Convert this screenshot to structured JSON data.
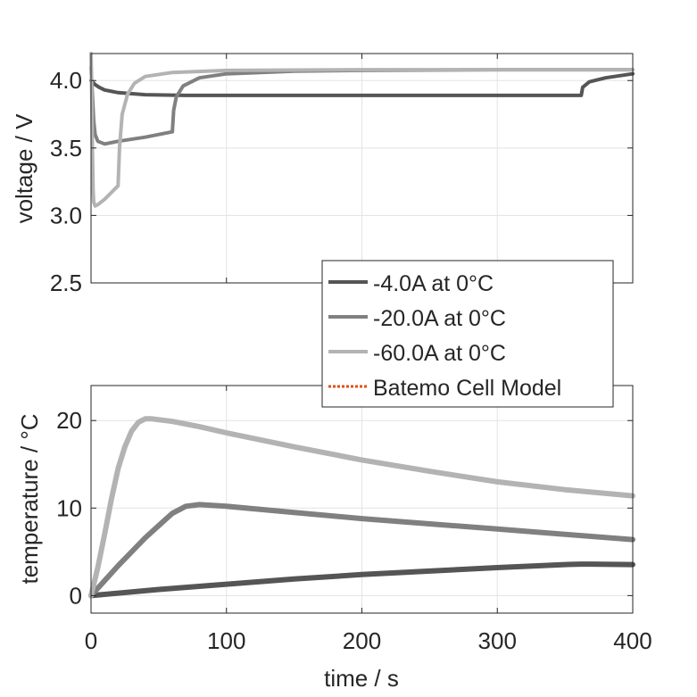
{
  "chart_data": [
    {
      "type": "line",
      "ylabel": "voltage / V",
      "xlabel": "",
      "xlim": [
        0,
        400
      ],
      "ylim": [
        2.5,
        4.2
      ],
      "xticks": [
        0,
        100,
        200,
        300,
        400
      ],
      "yticks": [
        2.5,
        3.0,
        3.5,
        4.0
      ],
      "ytick_labels": [
        "2.5",
        "3.0",
        "3.5",
        "4.0"
      ],
      "grid": true,
      "series": [
        {
          "name": "-4.0A at 0°C",
          "color": "#555555",
          "x": [
            0,
            1,
            3,
            6,
            10,
            20,
            40,
            70,
            100,
            200,
            300,
            362,
            363,
            368,
            380,
            400
          ],
          "y": [
            4.0,
            3.99,
            3.97,
            3.95,
            3.93,
            3.91,
            3.895,
            3.89,
            3.89,
            3.89,
            3.89,
            3.89,
            3.95,
            3.99,
            4.02,
            4.05
          ]
        },
        {
          "name": "-20.0A at 0°C",
          "color": "#808080",
          "x": [
            0,
            1,
            2,
            3,
            5,
            10,
            20,
            40,
            60,
            61,
            63,
            68,
            80,
            100,
            150,
            200,
            300,
            400
          ],
          "y": [
            4.1,
            3.9,
            3.7,
            3.6,
            3.55,
            3.53,
            3.55,
            3.58,
            3.62,
            3.78,
            3.88,
            3.96,
            4.02,
            4.05,
            4.07,
            4.075,
            4.08,
            4.08
          ]
        },
        {
          "name": "-60.0A at 0°C",
          "color": "#b3b3b3",
          "x": [
            0,
            0.5,
            1,
            1.5,
            2,
            3,
            5,
            10,
            15,
            20,
            21,
            23,
            27,
            32,
            40,
            60,
            100,
            200,
            300,
            400
          ],
          "y": [
            4.2,
            3.9,
            3.5,
            3.2,
            3.1,
            3.07,
            3.08,
            3.12,
            3.17,
            3.22,
            3.5,
            3.75,
            3.9,
            3.98,
            4.03,
            4.06,
            4.075,
            4.08,
            4.08,
            4.08
          ]
        }
      ]
    },
    {
      "type": "line",
      "ylabel": "temperature / °C",
      "xlabel": "time / s",
      "xlim": [
        0,
        400
      ],
      "ylim": [
        -2,
        24
      ],
      "xticks": [
        0,
        100,
        200,
        300,
        400
      ],
      "xtick_labels": [
        "0",
        "100",
        "200",
        "300",
        "400"
      ],
      "yticks": [
        0,
        10,
        20
      ],
      "ytick_labels": [
        "0",
        "10",
        "20"
      ],
      "grid": true,
      "series": [
        {
          "name": "-4.0A at 0°C",
          "color": "#555555",
          "x": [
            0,
            50,
            100,
            150,
            200,
            250,
            300,
            350,
            362,
            370,
            400
          ],
          "y": [
            0,
            0.7,
            1.3,
            1.9,
            2.4,
            2.8,
            3.2,
            3.55,
            3.6,
            3.6,
            3.55
          ]
        },
        {
          "name": "-20.0A at 0°C",
          "color": "#808080",
          "x": [
            0,
            10,
            20,
            30,
            40,
            50,
            60,
            70,
            80,
            100,
            150,
            200,
            250,
            300,
            350,
            400
          ],
          "y": [
            0,
            1.7,
            3.4,
            5.0,
            6.6,
            8.0,
            9.4,
            10.2,
            10.4,
            10.2,
            9.5,
            8.8,
            8.2,
            7.6,
            7.0,
            6.4
          ]
        },
        {
          "name": "-60.0A at 0°C",
          "color": "#b3b3b3",
          "x": [
            0,
            5,
            10,
            15,
            20,
            25,
            30,
            35,
            40,
            45,
            50,
            60,
            80,
            100,
            150,
            200,
            250,
            300,
            350,
            400
          ],
          "y": [
            0,
            3.2,
            7.0,
            11.0,
            14.5,
            17.0,
            18.8,
            19.8,
            20.2,
            20.2,
            20.1,
            19.9,
            19.3,
            18.6,
            17.0,
            15.5,
            14.2,
            13.0,
            12.1,
            11.4
          ]
        }
      ]
    }
  ],
  "legend": {
    "placement": "between-panels-right",
    "entries": [
      {
        "label": "-4.0A at 0°C",
        "color": "#555555",
        "style": "solid"
      },
      {
        "label": "-20.0A at 0°C",
        "color": "#808080",
        "style": "solid"
      },
      {
        "label": "-60.0A at 0°C",
        "color": "#b3b3b3",
        "style": "solid"
      },
      {
        "label": "Batemo Cell Model",
        "color": "#d95319",
        "style": "dotted"
      }
    ]
  }
}
